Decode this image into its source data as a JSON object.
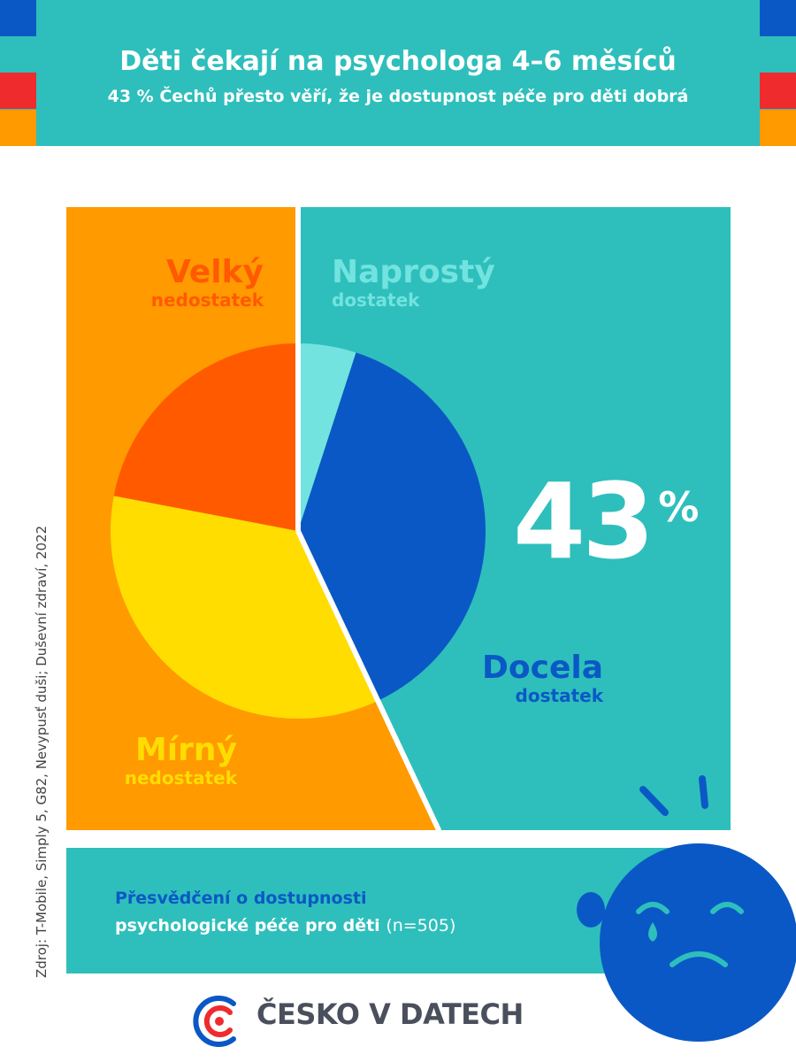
{
  "header": {
    "title": "Děti čekají na psychologa 4–6 měsíců",
    "subtitle": "43 % Čechů přesto věří, že je dostupnost péče pro děti dobrá",
    "stripe_colors": [
      "#0a58c5",
      "#ef2b2d",
      "#ff9a00"
    ]
  },
  "chart_data": {
    "type": "pie",
    "title": "",
    "slices": [
      {
        "label": "Naprostý dostatek",
        "value": 5,
        "color": "#72e3df"
      },
      {
        "label": "Docela dostatek",
        "value": 38,
        "color": "#0a58c5"
      },
      {
        "label": "Mírný nedostatek",
        "value": 35,
        "color": "#ffdd00"
      },
      {
        "label": "Velký nedostatek",
        "value": 22,
        "color": "#ff5a00"
      }
    ],
    "highlight_total": "43",
    "highlight_unit": "%"
  },
  "labels": {
    "velky_big": "Velký",
    "velky_small": "nedostatek",
    "naprosty_big": "Naprostý",
    "naprosty_small": "dostatek",
    "docela_big": "Docela",
    "docela_small": "dostatek",
    "mirny_big": "Mírný",
    "mirny_small": "nedostatek"
  },
  "footer": {
    "line1": "Přesvědčení o dostupnosti",
    "line2": "psychologické péče pro děti",
    "n": "(n=505)",
    "line1_color": "#0a58c5",
    "line2_color": "#ffffff",
    "icon": "crying-child-face-icon"
  },
  "source": "Zdroj: T-Mobile, Simply 5, G82, Nevypusť duši; Duševní zdraví, 2022",
  "brand": {
    "name": "ČESKO V DATECH",
    "icon": "cesko-v-datech-logo-icon"
  },
  "colors": {
    "teal": "#2ebfbc",
    "orange": "#ff9a00"
  }
}
